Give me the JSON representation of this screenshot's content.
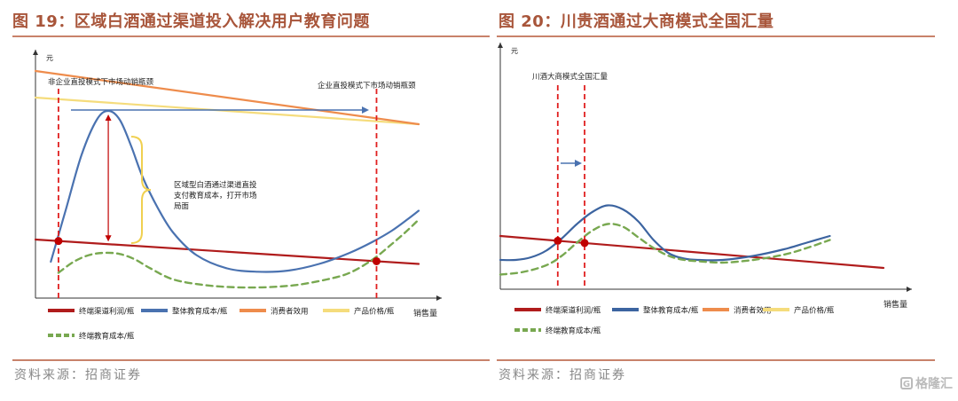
{
  "chart_data": [
    {
      "type": "line",
      "figure_label": "图 19：区域白酒通过渠道投入解决用户教育问题",
      "source": "资料来源：招商证券",
      "ylabel": "元",
      "xlabel": "销售量",
      "xlim": [
        0,
        100
      ],
      "ylim": [
        0,
        100
      ],
      "grid": false,
      "legend_position": "bottom",
      "series": [
        {
          "name": "终端渠道利润/瓶",
          "color": "#b01c1c",
          "style": "solid",
          "x": [
            0,
            100
          ],
          "values": [
            24,
            13
          ]
        },
        {
          "name": "整体教育成本/瓶",
          "color": "#4a72b0",
          "style": "solid",
          "x": [
            4,
            8,
            12,
            16,
            19,
            22,
            25,
            28,
            32,
            36,
            42,
            50,
            58,
            66,
            74,
            82,
            88,
            93,
            97,
            100
          ],
          "values": [
            14,
            38,
            62,
            78,
            82,
            78,
            66,
            52,
            38,
            27,
            17,
            11,
            9.5,
            10,
            13,
            18,
            23,
            28,
            33,
            37
          ]
        },
        {
          "name": "消费者效用",
          "color": "#ee8c4c",
          "style": "solid",
          "x": [
            0,
            100
          ],
          "values": [
            100,
            76
          ]
        },
        {
          "name": "产品价格/瓶",
          "color": "#f5dc7c",
          "style": "solid",
          "x": [
            0,
            100
          ],
          "values": [
            88,
            76
          ]
        },
        {
          "name": "终端教育成本/瓶",
          "color": "#78a850",
          "style": "dashed",
          "x": [
            6,
            10,
            14,
            18,
            22,
            26,
            30,
            36,
            44,
            52,
            60,
            68,
            76,
            82,
            88,
            93,
            97,
            100
          ],
          "values": [
            9,
            14,
            17,
            18,
            17.5,
            15,
            11,
            6,
            3.5,
            2.5,
            2.5,
            3.5,
            6,
            9,
            15,
            22,
            28,
            33
          ]
        }
      ],
      "annotations": {
        "vline_left_label": "非企业直投模式下市场动销瓶颈",
        "vline_right_label": "企业直投模式下市场动销瓶颈",
        "brace_label": [
          "区域型白酒通过渠道直投",
          "支付教育成本，打开市场",
          "局面"
        ]
      }
    },
    {
      "type": "line",
      "figure_label": "图 20：川贵酒通过大商模式全国汇量",
      "source": "资料来源：招商证券",
      "ylabel": "元",
      "xlabel": "销售量",
      "xlim": [
        0,
        100
      ],
      "ylim": [
        0,
        100
      ],
      "grid": false,
      "legend_position": "bottom",
      "series": [
        {
          "name": "终端渠道利润/瓶",
          "color": "#b01c1c",
          "style": "solid",
          "x": [
            0,
            100
          ],
          "values": [
            36,
            12
          ]
        },
        {
          "name": "整体教育成本/瓶",
          "color": "#3c64a0",
          "style": "solid",
          "x": [
            0,
            4,
            8,
            12,
            16,
            20,
            24,
            28,
            32,
            36,
            40,
            44,
            48,
            52,
            58,
            66,
            74,
            80,
            86
          ],
          "values": [
            18,
            18,
            20,
            25,
            34,
            45,
            54,
            59,
            56,
            47,
            33,
            23,
            19,
            18,
            18,
            21,
            26,
            31,
            36
          ]
        },
        {
          "name": "消费者效用",
          "color": "#ee8c4c",
          "style": "solid",
          "x": [],
          "values": []
        },
        {
          "name": "产品价格/瓶",
          "color": "#f5dc7c",
          "style": "solid",
          "x": [],
          "values": []
        },
        {
          "name": "终端教育成本/瓶",
          "color": "#78a850",
          "style": "dashed",
          "x": [
            0,
            6,
            12,
            16,
            20,
            24,
            28,
            32,
            36,
            40,
            44,
            48,
            52,
            58,
            66,
            74,
            80,
            86
          ],
          "values": [
            7,
            9,
            14,
            21,
            31,
            40,
            45,
            43,
            35,
            27,
            21,
            18,
            17,
            16,
            18,
            22,
            27,
            33
          ]
        }
      ],
      "annotations": {
        "vline_label": "川酒大商模式全国汇量"
      }
    }
  ],
  "brand_watermark": "格隆汇"
}
